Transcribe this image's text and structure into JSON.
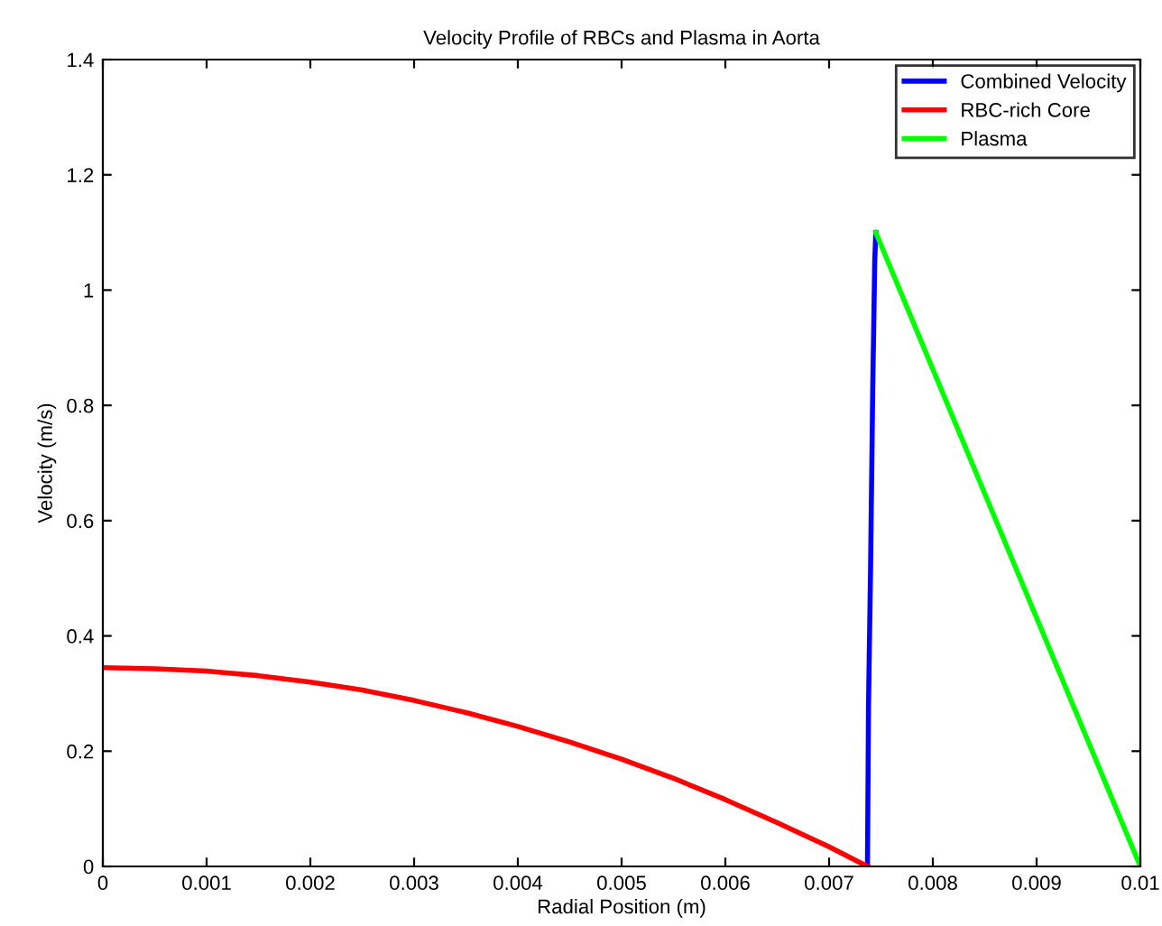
{
  "chart_data": {
    "type": "line",
    "title": "Velocity Profile of RBCs and Plasma in Aorta",
    "xlabel": "Radial Position (m)",
    "ylabel": "Velocity (m/s)",
    "series": [
      {
        "name": "Combined Velocity",
        "color": "#0000ff",
        "x": [
          0.00737,
          0.00738,
          0.0074,
          0.00742,
          0.00744,
          0.00745
        ],
        "values": [
          0,
          0.28,
          0.52,
          0.82,
          1.05,
          1.1
        ]
      },
      {
        "name": "RBC-rich Core",
        "color": "#ff0000",
        "x": [
          0,
          0.0005,
          0.001,
          0.0015,
          0.002,
          0.0025,
          0.003,
          0.0035,
          0.004,
          0.0045,
          0.005,
          0.0055,
          0.006,
          0.0065,
          0.007,
          0.00737
        ],
        "values": [
          0.345,
          0.343,
          0.339,
          0.331,
          0.32,
          0.306,
          0.288,
          0.267,
          0.243,
          0.216,
          0.186,
          0.153,
          0.116,
          0.076,
          0.034,
          0
        ]
      },
      {
        "name": "Plasma",
        "color": "#00ff00",
        "x": [
          0.00745,
          0.01
        ],
        "values": [
          1.1,
          0
        ]
      }
    ],
    "xlim": [
      0,
      0.01
    ],
    "ylim": [
      0,
      1.4
    ],
    "xticks": [
      0,
      0.001,
      0.002,
      0.003,
      0.004,
      0.005,
      0.006,
      0.007,
      0.008,
      0.009,
      0.01
    ],
    "yticks": [
      0,
      0.2,
      0.4,
      0.6,
      0.8,
      1,
      1.2,
      1.4
    ],
    "legend": "top right",
    "grid": false
  }
}
